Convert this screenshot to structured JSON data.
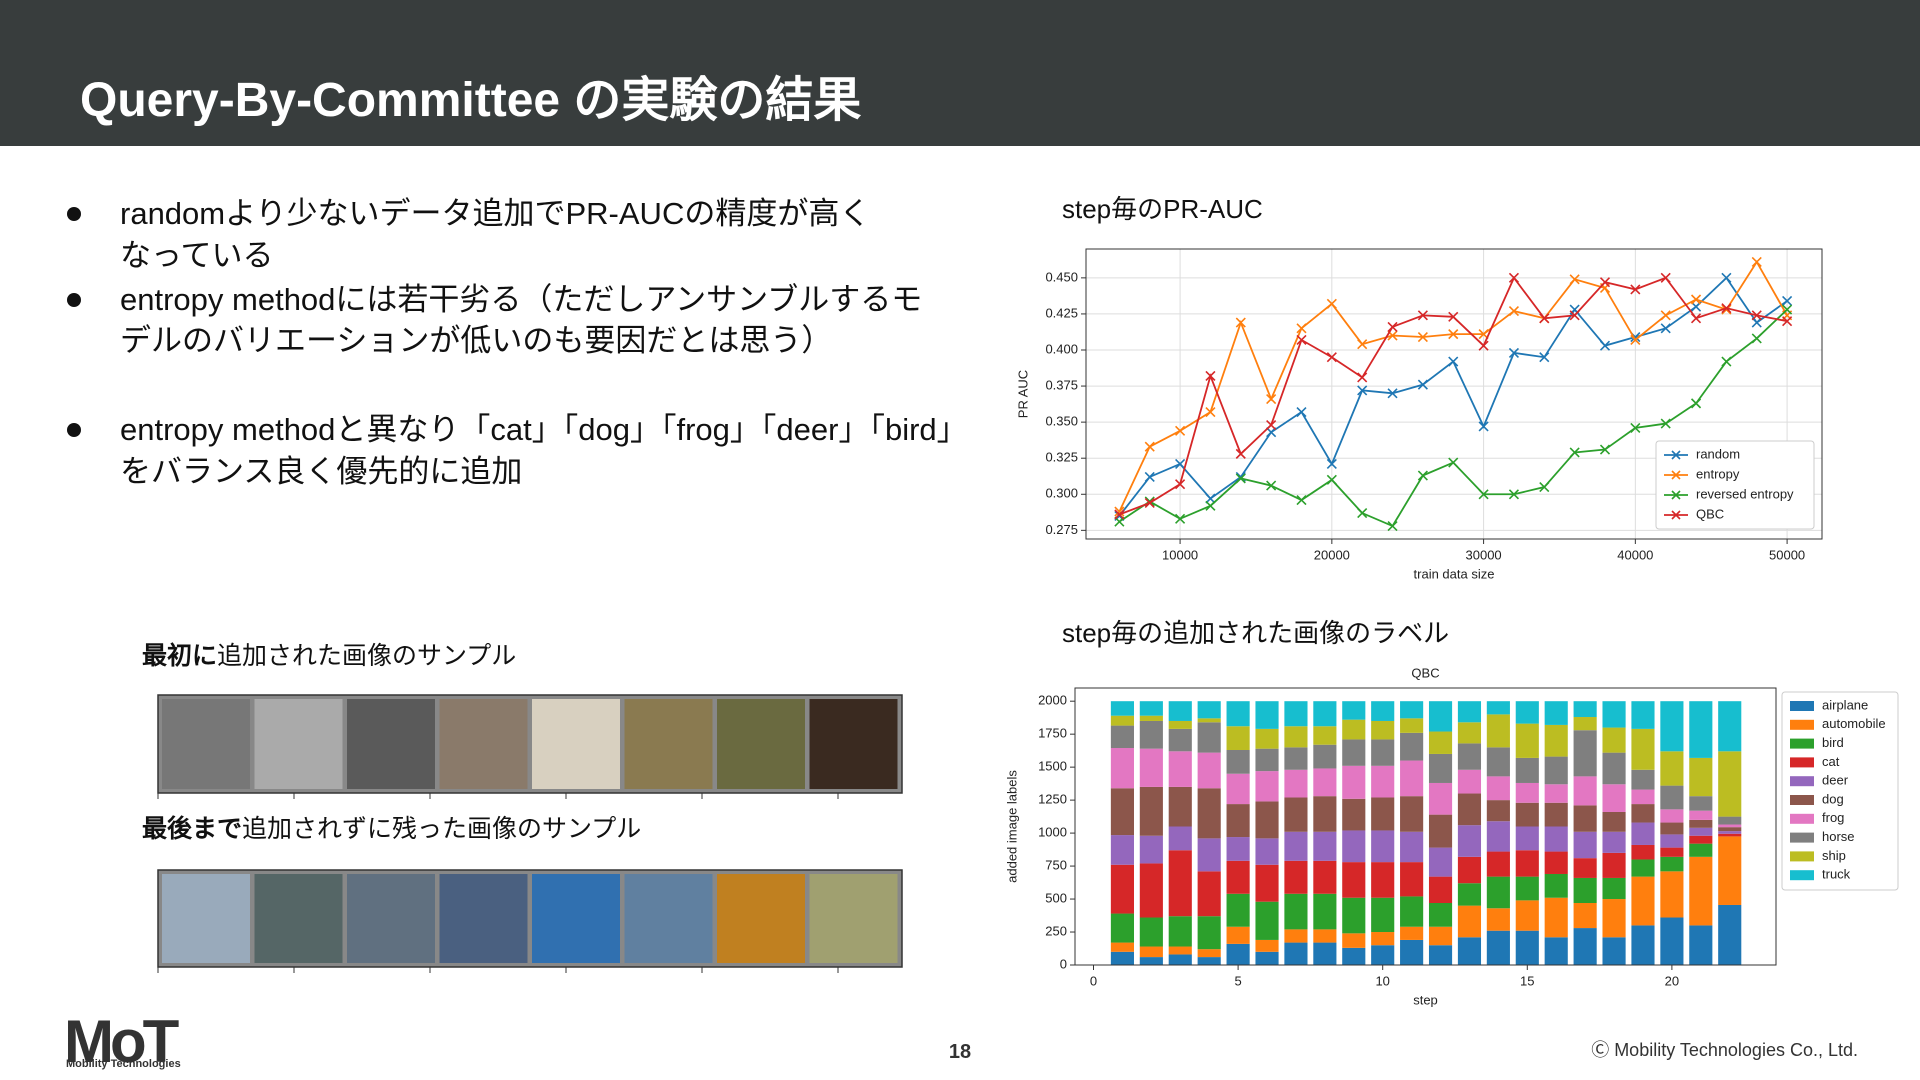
{
  "header": {
    "title": "Query-By-Committee の実験の結果"
  },
  "bullets": [
    [
      "randomより少ないデータ追加でPR-AUCの精度が高く",
      "なっている"
    ],
    [
      "entropy methodには若干劣る（ただしアンサンブルするモ",
      "デルのバリエーションが低いのも要因だとは思う）"
    ],
    [
      "entropy methodと異なり「cat」「dog」「frog」「deer」「bird」",
      "をバランス良く優先的に追加"
    ]
  ],
  "captions": [
    {
      "bold": "最初に",
      "text": "追加された画像のサンプル"
    },
    {
      "bold": "最後まで",
      "text": "追加されずに残った画像のサンプル"
    }
  ],
  "footer": {
    "page": "18",
    "copyright": "Ⓒ Mobility Technologies Co., Ltd.",
    "logo": "MoT",
    "logo_name": "Mobility Technologies"
  },
  "chart_data": [
    {
      "type": "line",
      "title": "step毎のPR-AUC",
      "xlabel": "train data size",
      "ylabel": "PR AUC",
      "grid": true,
      "legend": "lower right",
      "x": [
        6000,
        8000,
        10000,
        12000,
        14000,
        16000,
        18000,
        20000,
        22000,
        24000,
        26000,
        28000,
        30000,
        32000,
        34000,
        36000,
        38000,
        40000,
        42000,
        44000,
        46000,
        48000,
        50000
      ],
      "xlim": [
        3800,
        52300
      ],
      "xticks": [
        10000,
        20000,
        30000,
        40000,
        50000
      ],
      "ylim": [
        0.269,
        0.47
      ],
      "yticks": [
        0.275,
        {
          "value": 0.3,
          "label": "0.300"
        },
        0.325,
        {
          "value": 0.35,
          "label": "0.350"
        },
        0.375,
        {
          "value": 0.4,
          "label": "0.400"
        },
        0.425,
        {
          "value": 0.45,
          "label": "0.450"
        }
      ],
      "series": [
        {
          "name": "random",
          "color": "#1f77b4",
          "values": [
            0.285,
            0.312,
            0.321,
            0.297,
            0.312,
            0.343,
            0.357,
            0.321,
            0.372,
            0.37,
            0.376,
            0.392,
            0.347,
            0.398,
            0.395,
            0.428,
            0.403,
            0.409,
            0.415,
            0.43,
            0.45,
            0.419,
            0.434
          ]
        },
        {
          "name": "entropy",
          "color": "#ff7f0e",
          "values": [
            0.288,
            0.333,
            0.344,
            0.357,
            0.419,
            0.366,
            0.415,
            0.432,
            0.404,
            0.41,
            0.409,
            0.411,
            0.411,
            0.427,
            0.422,
            0.449,
            0.443,
            0.407,
            0.424,
            0.435,
            0.428,
            0.461,
            0.424
          ]
        },
        {
          "name": "reversed entropy",
          "color": "#2ca02c",
          "values": [
            0.281,
            0.295,
            0.283,
            0.292,
            0.311,
            0.306,
            0.296,
            0.31,
            0.287,
            0.278,
            0.313,
            0.322,
            0.3,
            0.3,
            0.305,
            0.329,
            0.331,
            0.346,
            0.349,
            0.363,
            0.392,
            0.408,
            0.428
          ]
        },
        {
          "name": "QBC",
          "color": "#d62728",
          "values": [
            0.286,
            0.294,
            0.307,
            0.382,
            0.328,
            0.348,
            0.407,
            0.395,
            0.381,
            0.416,
            0.424,
            0.423,
            0.403,
            0.45,
            0.422,
            0.424,
            0.447,
            0.442,
            0.45,
            0.422,
            0.429,
            0.424,
            0.42
          ]
        }
      ]
    },
    {
      "type": "stacked_bar",
      "heading": "step毎の追加された画像のラベル",
      "title": "QBC",
      "xlabel": "step",
      "ylabel": "added image labels",
      "grid": false,
      "legend": "outside right",
      "x": [
        1,
        2,
        3,
        4,
        5,
        6,
        7,
        8,
        9,
        10,
        11,
        12,
        13,
        14,
        15,
        16,
        17,
        18,
        19,
        20,
        21,
        22
      ],
      "xlim": [
        -0.64,
        23.6
      ],
      "xticks": [
        0,
        5,
        10,
        15,
        20
      ],
      "ylim": [
        0,
        2100
      ],
      "yticks": [
        0,
        250,
        500,
        750,
        1000,
        1250,
        1500,
        1750,
        2000
      ],
      "series": [
        {
          "name": "airplane",
          "color": "#1f77b4",
          "values": [
            100,
            60,
            80,
            60,
            160,
            100,
            170,
            170,
            130,
            150,
            190,
            150,
            210,
            260,
            260,
            210,
            280,
            210,
            300,
            360,
            300,
            455
          ]
        },
        {
          "name": "automobile",
          "color": "#ff7f0e",
          "values": [
            70,
            80,
            60,
            60,
            130,
            90,
            100,
            100,
            110,
            100,
            100,
            140,
            240,
            170,
            230,
            300,
            190,
            290,
            370,
            350,
            520,
            520
          ]
        },
        {
          "name": "bird",
          "color": "#2ca02c",
          "values": [
            220,
            220,
            230,
            250,
            250,
            290,
            270,
            270,
            270,
            260,
            230,
            180,
            170,
            240,
            180,
            180,
            190,
            160,
            130,
            110,
            100,
            0
          ]
        },
        {
          "name": "cat",
          "color": "#d62728",
          "values": [
            370,
            410,
            500,
            340,
            250,
            280,
            250,
            250,
            270,
            270,
            260,
            200,
            200,
            190,
            200,
            170,
            150,
            190,
            110,
            70,
            60,
            20
          ]
        },
        {
          "name": "deer",
          "color": "#9467bd",
          "values": [
            225,
            210,
            180,
            250,
            180,
            200,
            220,
            220,
            240,
            240,
            230,
            220,
            240,
            230,
            180,
            190,
            200,
            160,
            170,
            100,
            60,
            20
          ]
        },
        {
          "name": "dog",
          "color": "#8c564b",
          "values": [
            355,
            370,
            300,
            380,
            250,
            280,
            260,
            270,
            240,
            250,
            270,
            250,
            240,
            160,
            180,
            180,
            200,
            150,
            140,
            90,
            60,
            30
          ]
        },
        {
          "name": "frog",
          "color": "#e377c2",
          "values": [
            305,
            290,
            270,
            270,
            230,
            230,
            210,
            210,
            250,
            240,
            270,
            240,
            180,
            180,
            150,
            140,
            220,
            210,
            110,
            100,
            70,
            20
          ]
        },
        {
          "name": "horse",
          "color": "#7f7f7f",
          "values": [
            170,
            210,
            170,
            230,
            180,
            170,
            170,
            180,
            200,
            200,
            210,
            220,
            200,
            220,
            190,
            210,
            350,
            240,
            150,
            180,
            110,
            60
          ]
        },
        {
          "name": "ship",
          "color": "#bcbd22",
          "values": [
            75,
            40,
            60,
            30,
            180,
            150,
            160,
            140,
            150,
            140,
            110,
            170,
            160,
            250,
            260,
            240,
            100,
            190,
            310,
            260,
            290,
            495
          ]
        },
        {
          "name": "truck",
          "color": "#17becf",
          "values": [
            110,
            110,
            150,
            130,
            190,
            210,
            190,
            190,
            140,
            150,
            130,
            230,
            160,
            100,
            170,
            180,
            120,
            200,
            210,
            380,
            430,
            380
          ]
        }
      ]
    }
  ]
}
